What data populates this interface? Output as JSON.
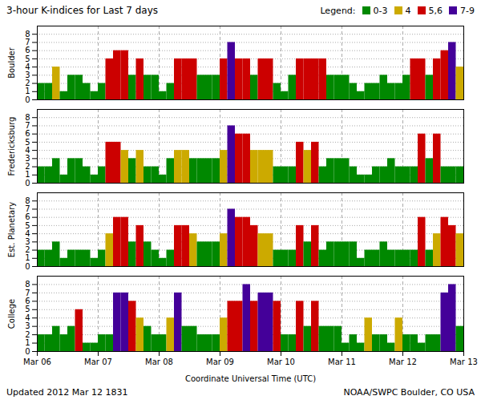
{
  "chart_data": {
    "type": "bar",
    "title": "3-hour K-indices for Last 7 days",
    "xlabel": "Coordinate Universal Time (UTC)",
    "legend": "top right",
    "legend_title": "Legend:",
    "legend_entries": [
      {
        "label": "0-3",
        "color": "#008800"
      },
      {
        "label": "4",
        "color": "#ccaa00"
      },
      {
        "label": "5,6",
        "color": "#cc0000"
      },
      {
        "label": "7-9",
        "color": "#440099"
      }
    ],
    "annotations": [
      "Updated 2012 Mar 12 1831",
      "NOAA/SWPC Boulder, CO USA"
    ],
    "xlim": [
      0,
      56
    ],
    "xticks": [
      {
        "value": 0,
        "label": "Mar 06"
      },
      {
        "value": 8,
        "label": "Mar 07"
      },
      {
        "value": 16,
        "label": "Mar 08"
      },
      {
        "value": 24,
        "label": "Mar 09"
      },
      {
        "value": 32,
        "label": "Mar 10"
      },
      {
        "value": 40,
        "label": "Mar 11"
      },
      {
        "value": 48,
        "label": "Mar 12"
      },
      {
        "value": 56,
        "label": "Mar 13"
      }
    ],
    "ylim": [
      0,
      9
    ],
    "yticks": [
      0,
      1,
      2,
      3,
      4,
      5,
      6,
      7,
      8
    ],
    "grid": true,
    "series": [
      {
        "name": "Boulder",
        "values": [
          2,
          2,
          4,
          1,
          3,
          3,
          2,
          1,
          2,
          5,
          6,
          6,
          3,
          5,
          3,
          3,
          1,
          2,
          5,
          5,
          5,
          3,
          3,
          3,
          5,
          7,
          5,
          5,
          3,
          5,
          5,
          2,
          1,
          3,
          5,
          5,
          5,
          5,
          3,
          3,
          3,
          2,
          1,
          2,
          2,
          3,
          2,
          2,
          3,
          5,
          5,
          3,
          5,
          6,
          7,
          4
        ],
        "colors": [
          "#008800",
          "#008800",
          "#ccaa00",
          "#008800",
          "#008800",
          "#008800",
          "#008800",
          "#008800",
          "#008800",
          "#cc0000",
          "#cc0000",
          "#cc0000",
          "#008800",
          "#cc0000",
          "#008800",
          "#008800",
          "#008800",
          "#008800",
          "#cc0000",
          "#cc0000",
          "#cc0000",
          "#008800",
          "#008800",
          "#008800",
          "#cc0000",
          "#440099",
          "#cc0000",
          "#cc0000",
          "#008800",
          "#cc0000",
          "#cc0000",
          "#008800",
          "#008800",
          "#008800",
          "#cc0000",
          "#cc0000",
          "#cc0000",
          "#cc0000",
          "#008800",
          "#008800",
          "#008800",
          "#008800",
          "#008800",
          "#008800",
          "#008800",
          "#008800",
          "#008800",
          "#008800",
          "#008800",
          "#cc0000",
          "#cc0000",
          "#008800",
          "#cc0000",
          "#cc0000",
          "#440099",
          "#ccaa00"
        ]
      },
      {
        "name": "Fredericksburg",
        "values": [
          2,
          2,
          3,
          1,
          3,
          3,
          2,
          1,
          2,
          5,
          5,
          4,
          3,
          4,
          2,
          2,
          1,
          3,
          4,
          4,
          3,
          3,
          3,
          3,
          4,
          7,
          6,
          6,
          4,
          4,
          4,
          2,
          2,
          2,
          5,
          4,
          5,
          2,
          3,
          3,
          3,
          2,
          1,
          1,
          2,
          2,
          3,
          2,
          2,
          2,
          6,
          3,
          6,
          2,
          2,
          2
        ],
        "colors": [
          "#008800",
          "#008800",
          "#008800",
          "#008800",
          "#008800",
          "#008800",
          "#008800",
          "#008800",
          "#008800",
          "#cc0000",
          "#cc0000",
          "#ccaa00",
          "#008800",
          "#ccaa00",
          "#008800",
          "#008800",
          "#008800",
          "#008800",
          "#ccaa00",
          "#ccaa00",
          "#008800",
          "#008800",
          "#008800",
          "#008800",
          "#ccaa00",
          "#440099",
          "#cc0000",
          "#cc0000",
          "#ccaa00",
          "#ccaa00",
          "#ccaa00",
          "#008800",
          "#008800",
          "#008800",
          "#cc0000",
          "#ccaa00",
          "#cc0000",
          "#008800",
          "#008800",
          "#008800",
          "#008800",
          "#008800",
          "#008800",
          "#008800",
          "#008800",
          "#008800",
          "#008800",
          "#008800",
          "#008800",
          "#008800",
          "#cc0000",
          "#008800",
          "#cc0000",
          "#008800",
          "#008800",
          "#008800"
        ]
      },
      {
        "name": "Est. Planetary",
        "values": [
          2,
          2,
          3,
          1,
          2,
          2,
          2,
          1,
          2,
          4,
          6,
          6,
          3,
          5,
          3,
          2,
          1,
          2,
          5,
          5,
          4,
          3,
          3,
          3,
          4,
          7,
          6,
          6,
          5,
          4,
          4,
          2,
          2,
          2,
          5,
          3,
          5,
          2,
          3,
          3,
          3,
          3,
          1,
          2,
          2,
          3,
          2,
          2,
          2,
          2,
          6,
          2,
          4,
          6,
          5,
          4
        ],
        "colors": [
          "#008800",
          "#008800",
          "#008800",
          "#008800",
          "#008800",
          "#008800",
          "#008800",
          "#008800",
          "#008800",
          "#ccaa00",
          "#cc0000",
          "#cc0000",
          "#008800",
          "#cc0000",
          "#008800",
          "#008800",
          "#008800",
          "#008800",
          "#cc0000",
          "#cc0000",
          "#ccaa00",
          "#008800",
          "#008800",
          "#008800",
          "#ccaa00",
          "#440099",
          "#cc0000",
          "#cc0000",
          "#cc0000",
          "#ccaa00",
          "#ccaa00",
          "#008800",
          "#008800",
          "#008800",
          "#cc0000",
          "#008800",
          "#cc0000",
          "#008800",
          "#008800",
          "#008800",
          "#008800",
          "#008800",
          "#008800",
          "#008800",
          "#008800",
          "#008800",
          "#008800",
          "#008800",
          "#008800",
          "#008800",
          "#cc0000",
          "#008800",
          "#ccaa00",
          "#cc0000",
          "#cc0000",
          "#ccaa00"
        ]
      },
      {
        "name": "College",
        "values": [
          2,
          2,
          3,
          2,
          3,
          5,
          1,
          1,
          2,
          2,
          7,
          7,
          6,
          4,
          3,
          2,
          2,
          4,
          7,
          3,
          3,
          2,
          2,
          2,
          4,
          6,
          6,
          8,
          6,
          7,
          7,
          6,
          2,
          2,
          6,
          3,
          6,
          3,
          3,
          3,
          1,
          2,
          1,
          4,
          2,
          2,
          1,
          4,
          2,
          2,
          1,
          2,
          2,
          7,
          8,
          3
        ],
        "colors": [
          "#008800",
          "#008800",
          "#008800",
          "#008800",
          "#008800",
          "#cc0000",
          "#008800",
          "#008800",
          "#008800",
          "#008800",
          "#440099",
          "#440099",
          "#cc0000",
          "#ccaa00",
          "#008800",
          "#008800",
          "#008800",
          "#ccaa00",
          "#440099",
          "#008800",
          "#008800",
          "#008800",
          "#008800",
          "#008800",
          "#ccaa00",
          "#cc0000",
          "#cc0000",
          "#440099",
          "#cc0000",
          "#440099",
          "#440099",
          "#cc0000",
          "#008800",
          "#008800",
          "#cc0000",
          "#008800",
          "#cc0000",
          "#008800",
          "#008800",
          "#008800",
          "#008800",
          "#008800",
          "#008800",
          "#ccaa00",
          "#008800",
          "#008800",
          "#008800",
          "#ccaa00",
          "#008800",
          "#008800",
          "#008800",
          "#008800",
          "#008800",
          "#440099",
          "#440099",
          "#008800"
        ]
      }
    ]
  }
}
